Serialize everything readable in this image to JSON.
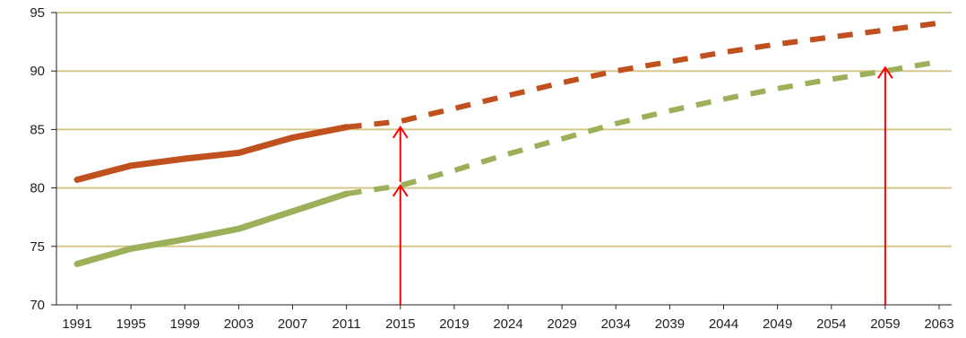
{
  "chart_data": {
    "type": "line",
    "title": "",
    "xlabel": "",
    "ylabel": "",
    "categories": [
      "1991",
      "1995",
      "1999",
      "2003",
      "2007",
      "2011",
      "2015",
      "2019",
      "2024",
      "2029",
      "2034",
      "2039",
      "2044",
      "2049",
      "2054",
      "2059",
      "2063"
    ],
    "ylim": [
      70,
      95
    ],
    "y_ticks": [
      70,
      75,
      80,
      85,
      90,
      95
    ],
    "grid": true,
    "legend": "none",
    "series": [
      {
        "color": "#c0501e",
        "values": [
          80.7,
          81.9,
          82.5,
          83.0,
          84.3,
          85.2,
          85.7,
          86.8,
          87.9,
          89.0,
          90.0,
          90.8,
          91.6,
          92.3,
          92.9,
          93.5,
          94.1
        ],
        "observed_until_index": 5
      },
      {
        "color": "#9bb059",
        "values": [
          73.5,
          74.8,
          75.6,
          76.5,
          78.0,
          79.5,
          80.2,
          81.5,
          82.9,
          84.2,
          85.5,
          86.6,
          87.6,
          88.5,
          89.3,
          90.0,
          90.8
        ],
        "observed_until_index": 5
      }
    ],
    "annotations": [
      {
        "type": "arrow",
        "color": "#ff0000",
        "x": "2015",
        "y_from": 70,
        "y_to": 80.2
      },
      {
        "type": "arrow",
        "color": "#ff0000",
        "x": "2015",
        "y_from": 80.5,
        "y_to": 85.2
      },
      {
        "type": "arrow",
        "color": "#ff0000",
        "x": "2059",
        "y_from": 70,
        "y_to": 90.3
      }
    ],
    "colors": {
      "grid": "#d6c88a",
      "axis": "#222222",
      "annotation": "#ff0000"
    }
  }
}
